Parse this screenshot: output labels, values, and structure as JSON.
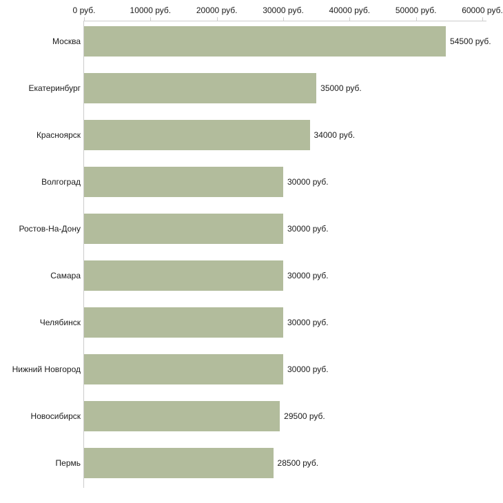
{
  "chart_data": {
    "type": "bar",
    "orientation": "horizontal",
    "title": "",
    "xlabel": "",
    "ylabel": "",
    "xlim": [
      0,
      60000
    ],
    "grid": false,
    "legend": false,
    "bar_color": "#b2bc9c",
    "axis_color": "#cccccc",
    "text_color": "#1a1a1a",
    "x_ticks": [
      0,
      10000,
      20000,
      30000,
      40000,
      50000,
      60000
    ],
    "x_tick_labels": [
      "0 руб.",
      "10000 руб.",
      "20000 руб.",
      "30000 руб.",
      "40000 руб.",
      "50000 руб.",
      "60000 руб."
    ],
    "categories": [
      "Москва",
      "Екатеринбург",
      "Красноярск",
      "Волгоград",
      "Ростов-На-Дону",
      "Самара",
      "Челябинск",
      "Нижний Новгород",
      "Новосибирск",
      "Пермь"
    ],
    "values": [
      54500,
      35000,
      34000,
      30000,
      30000,
      30000,
      30000,
      30000,
      29500,
      28500
    ],
    "value_labels": [
      "54500 руб.",
      "35000 руб.",
      "34000 руб.",
      "30000 руб.",
      "30000 руб.",
      "30000 руб.",
      "30000 руб.",
      "30000 руб.",
      "29500 руб.",
      "28500 руб."
    ]
  }
}
